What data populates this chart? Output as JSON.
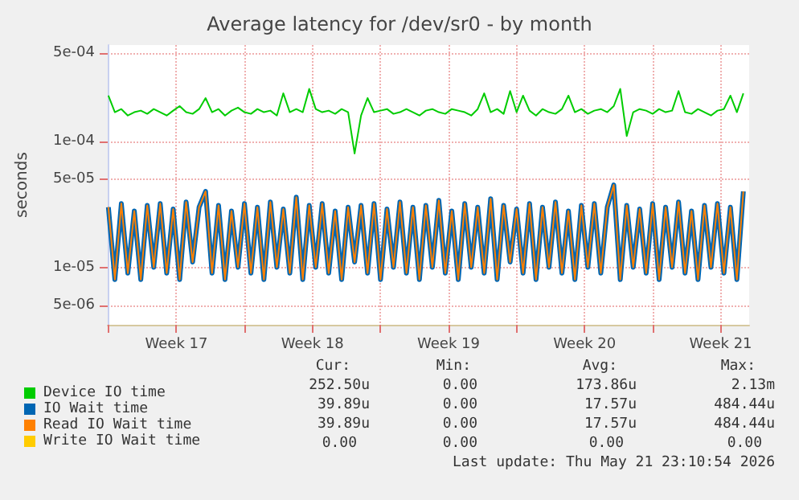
{
  "chart_data": {
    "type": "line",
    "title": "Average latency for /dev/sr0 - by month",
    "ylabel": "seconds",
    "log": "y",
    "grid": true,
    "legend": "bottom",
    "marker": "none",
    "line_style": "solid",
    "ylim": [
      3.5e-06,
      0.00058
    ],
    "yticks": [
      {
        "value": 5e-06,
        "label": "5e-06"
      },
      {
        "value": 1e-05,
        "label": "1e-05"
      },
      {
        "value": 5e-05,
        "label": "5e-05"
      },
      {
        "value": 0.0001,
        "label": "1e-04"
      },
      {
        "value": 0.0005,
        "label": "5e-04"
      }
    ],
    "xlim": [
      "2026-04-18T23:10",
      "2026-05-21T23:10"
    ],
    "xticks": [
      {
        "value": "2026-04-19T00:00",
        "label": null
      },
      {
        "value": "2026-04-22T12:00",
        "label": "Week 17"
      },
      {
        "value": "2026-04-26T00:00",
        "label": null
      },
      {
        "value": "2026-04-29T12:00",
        "label": "Week 18"
      },
      {
        "value": "2026-05-03T00:00",
        "label": null
      },
      {
        "value": "2026-05-06T12:00",
        "label": "Week 19"
      },
      {
        "value": "2026-05-10T00:00",
        "label": null
      },
      {
        "value": "2026-05-13T12:00",
        "label": "Week 20"
      },
      {
        "value": "2026-05-17T00:00",
        "label": null
      },
      {
        "value": "2026-05-20T12:00",
        "label": "Week 21"
      }
    ],
    "x": [
      "2026-04-19T00:00",
      "2026-04-19T08:00",
      "2026-04-19T16:00",
      "2026-04-20T00:00",
      "2026-04-20T08:00",
      "2026-04-20T16:00",
      "2026-04-21T00:00",
      "2026-04-21T08:00",
      "2026-04-21T16:00",
      "2026-04-22T00:00",
      "2026-04-22T08:00",
      "2026-04-22T16:00",
      "2026-04-23T00:00",
      "2026-04-23T08:00",
      "2026-04-23T16:00",
      "2026-04-24T00:00",
      "2026-04-24T08:00",
      "2026-04-24T16:00",
      "2026-04-25T00:00",
      "2026-04-25T08:00",
      "2026-04-25T16:00",
      "2026-04-26T00:00",
      "2026-04-26T08:00",
      "2026-04-26T16:00",
      "2026-04-27T00:00",
      "2026-04-27T08:00",
      "2026-04-27T16:00",
      "2026-04-28T00:00",
      "2026-04-28T08:00",
      "2026-04-28T16:00",
      "2026-04-29T00:00",
      "2026-04-29T08:00",
      "2026-04-29T16:00",
      "2026-04-30T00:00",
      "2026-04-30T08:00",
      "2026-04-30T16:00",
      "2026-05-01T00:00",
      "2026-05-01T08:00",
      "2026-05-01T16:00",
      "2026-05-02T00:00",
      "2026-05-02T08:00",
      "2026-05-02T16:00",
      "2026-05-03T00:00",
      "2026-05-03T08:00",
      "2026-05-03T16:00",
      "2026-05-04T00:00",
      "2026-05-04T08:00",
      "2026-05-04T16:00",
      "2026-05-05T00:00",
      "2026-05-05T08:00",
      "2026-05-05T16:00",
      "2026-05-06T00:00",
      "2026-05-06T08:00",
      "2026-05-06T16:00",
      "2026-05-07T00:00",
      "2026-05-07T08:00",
      "2026-05-07T16:00",
      "2026-05-08T00:00",
      "2026-05-08T08:00",
      "2026-05-08T16:00",
      "2026-05-09T00:00",
      "2026-05-09T08:00",
      "2026-05-09T16:00",
      "2026-05-10T00:00",
      "2026-05-10T08:00",
      "2026-05-10T16:00",
      "2026-05-11T00:00",
      "2026-05-11T08:00",
      "2026-05-11T16:00",
      "2026-05-12T00:00",
      "2026-05-12T08:00",
      "2026-05-12T16:00",
      "2026-05-13T00:00",
      "2026-05-13T08:00",
      "2026-05-13T16:00",
      "2026-05-14T00:00",
      "2026-05-14T08:00",
      "2026-05-14T16:00",
      "2026-05-15T00:00",
      "2026-05-15T08:00",
      "2026-05-15T16:00",
      "2026-05-16T00:00",
      "2026-05-16T08:00",
      "2026-05-16T16:00",
      "2026-05-17T00:00",
      "2026-05-17T08:00",
      "2026-05-17T16:00",
      "2026-05-18T00:00",
      "2026-05-18T08:00",
      "2026-05-18T16:00",
      "2026-05-19T00:00",
      "2026-05-19T08:00",
      "2026-05-19T16:00",
      "2026-05-20T00:00",
      "2026-05-20T08:00",
      "2026-05-20T16:00",
      "2026-05-21T00:00",
      "2026-05-21T08:00",
      "2026-05-21T16:00"
    ],
    "series": [
      {
        "name": "Device IO time",
        "color": "#00cc00",
        "values": [
          0.00023,
          0.00017,
          0.00018,
          0.00016,
          0.00017,
          0.000175,
          0.000165,
          0.00018,
          0.00017,
          0.00016,
          0.000175,
          0.00019,
          0.00017,
          0.000165,
          0.00018,
          0.00022,
          0.00017,
          0.00018,
          0.00016,
          0.000175,
          0.000185,
          0.00017,
          0.000165,
          0.00018,
          0.00017,
          0.000175,
          0.00016,
          0.00024,
          0.00017,
          0.00018,
          0.00017,
          0.00026,
          0.00018,
          0.00017,
          0.000175,
          0.000165,
          0.00018,
          0.00017,
          8e-05,
          0.00016,
          0.00022,
          0.00017,
          0.000175,
          0.00018,
          0.000165,
          0.00017,
          0.00018,
          0.00017,
          0.00016,
          0.000175,
          0.00018,
          0.00017,
          0.000165,
          0.00018,
          0.000175,
          0.00017,
          0.00016,
          0.00018,
          0.00024,
          0.00017,
          0.00018,
          0.000165,
          0.00025,
          0.00017,
          0.00023,
          0.000175,
          0.00016,
          0.00018,
          0.00017,
          0.000165,
          0.00018,
          0.00023,
          0.00017,
          0.00018,
          0.000165,
          0.000175,
          0.00018,
          0.00017,
          0.00019,
          0.00026,
          0.00011,
          0.00017,
          0.00018,
          0.000175,
          0.000165,
          0.00018,
          0.00017,
          0.000175,
          0.00025,
          0.00017,
          0.000165,
          0.00018,
          0.00017,
          0.00016,
          0.000175,
          0.00018,
          0.00023,
          0.00017,
          0.00024
        ]
      },
      {
        "name": "IO Wait time",
        "color": "#0066b3",
        "values": [
          3e-05,
          8e-06,
          3.2e-05,
          9e-06,
          2.8e-05,
          8e-06,
          3.1e-05,
          1e-05,
          3.2e-05,
          9e-06,
          2.9e-05,
          8e-06,
          3.3e-05,
          1.1e-05,
          3e-05,
          4e-05,
          9e-06,
          3.1e-05,
          8e-06,
          2.8e-05,
          1e-05,
          3.2e-05,
          9e-06,
          3e-05,
          8e-06,
          3.3e-05,
          1e-05,
          2.9e-05,
          9e-06,
          3.6e-05,
          8e-06,
          3.1e-05,
          1e-05,
          3.2e-05,
          9e-06,
          2.8e-05,
          8e-06,
          3e-05,
          1.1e-05,
          3.1e-05,
          9e-06,
          3.2e-05,
          8e-06,
          2.9e-05,
          1e-05,
          3.3e-05,
          9e-06,
          3e-05,
          8e-06,
          3.1e-05,
          1e-05,
          3.4e-05,
          9e-06,
          2.8e-05,
          8e-06,
          3.2e-05,
          1e-05,
          3e-05,
          9e-06,
          3.5e-05,
          8e-06,
          3.1e-05,
          1.1e-05,
          2.9e-05,
          9e-06,
          3.2e-05,
          8e-06,
          3e-05,
          1e-05,
          3.3e-05,
          9e-06,
          2.8e-05,
          8e-06,
          3.1e-05,
          1e-05,
          3.2e-05,
          9e-06,
          3e-05,
          4.5e-05,
          8e-06,
          3.1e-05,
          1e-05,
          2.9e-05,
          9e-06,
          3.2e-05,
          8e-06,
          3e-05,
          1e-05,
          3.3e-05,
          9e-06,
          2.8e-05,
          8e-06,
          3.1e-05,
          1e-05,
          3.2e-05,
          9e-06,
          3e-05,
          8e-06,
          4e-05
        ]
      },
      {
        "name": "Read IO Wait time",
        "color": "#ff8000",
        "values": [
          3e-05,
          8e-06,
          3.2e-05,
          9e-06,
          2.8e-05,
          8e-06,
          3.1e-05,
          1e-05,
          3.2e-05,
          9e-06,
          2.9e-05,
          8e-06,
          3.3e-05,
          1.1e-05,
          3e-05,
          4e-05,
          9e-06,
          3.1e-05,
          8e-06,
          2.8e-05,
          1e-05,
          3.2e-05,
          9e-06,
          3e-05,
          8e-06,
          3.3e-05,
          1e-05,
          2.9e-05,
          9e-06,
          3.6e-05,
          8e-06,
          3.1e-05,
          1e-05,
          3.2e-05,
          9e-06,
          2.8e-05,
          8e-06,
          3e-05,
          1.1e-05,
          3.1e-05,
          9e-06,
          3.2e-05,
          8e-06,
          2.9e-05,
          1e-05,
          3.3e-05,
          9e-06,
          3e-05,
          8e-06,
          3.1e-05,
          1e-05,
          3.4e-05,
          9e-06,
          2.8e-05,
          8e-06,
          3.2e-05,
          1e-05,
          3e-05,
          9e-06,
          3.5e-05,
          8e-06,
          3.1e-05,
          1.1e-05,
          2.9e-05,
          9e-06,
          3.2e-05,
          8e-06,
          3e-05,
          1e-05,
          3.3e-05,
          9e-06,
          2.8e-05,
          8e-06,
          3.1e-05,
          1e-05,
          3.2e-05,
          9e-06,
          3e-05,
          4.5e-05,
          8e-06,
          3.1e-05,
          1e-05,
          2.9e-05,
          9e-06,
          3.2e-05,
          8e-06,
          3e-05,
          1e-05,
          3.3e-05,
          9e-06,
          2.8e-05,
          8e-06,
          3.1e-05,
          1e-05,
          3.2e-05,
          9e-06,
          3e-05,
          8e-06,
          4e-05
        ]
      },
      {
        "name": "Write IO Wait time",
        "color": "#ffcc00",
        "values": [
          null,
          null,
          null,
          null,
          null,
          null,
          null,
          null,
          null,
          null,
          null,
          null,
          null,
          null,
          null,
          null,
          null,
          null,
          null,
          null,
          null,
          null,
          null,
          null,
          null,
          null,
          null,
          null,
          null,
          null,
          null,
          null,
          null,
          null,
          null,
          null,
          null,
          null,
          null,
          null,
          null,
          null,
          null,
          null,
          null,
          null,
          null,
          null,
          null,
          null,
          null,
          null,
          null,
          null,
          null,
          null,
          null,
          null,
          null,
          null,
          null,
          null,
          null,
          null,
          null,
          null,
          null,
          null,
          null,
          null,
          null,
          null,
          null,
          null,
          null,
          null,
          null,
          null,
          null,
          null,
          null,
          null,
          null,
          null,
          null,
          null,
          null,
          null,
          null,
          null,
          null,
          null,
          null,
          null,
          null,
          null,
          null,
          null,
          null
        ]
      }
    ],
    "annotations": [
      "Cur:",
      "Min:",
      "Avg:",
      "Max:",
      "252.50u",
      "0.00",
      "173.86u",
      "2.13m",
      "39.89u",
      "0.00",
      "17.57u",
      "484.44u",
      "39.89u",
      "0.00",
      "17.57u",
      "484.44u",
      "0.00",
      "0.00",
      "0.00",
      "0.00",
      "Last update: Thu May 21 23:10:54 2026"
    ]
  }
}
